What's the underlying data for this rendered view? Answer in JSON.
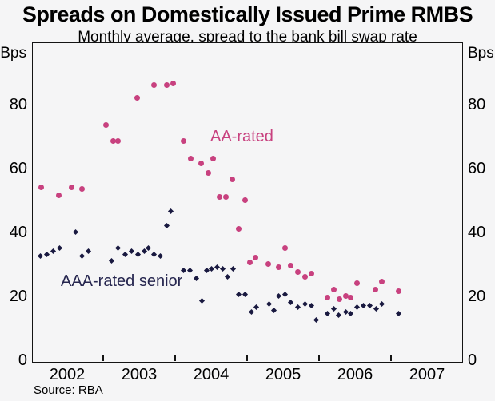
{
  "title": "Spreads on Domestically Issued Prime RMBS",
  "subtitle": "Monthly average, spread to the bank bill swap rate",
  "source": "Source: RBA",
  "series_labels": {
    "aa": "AA-rated",
    "aaa": "AAA-rated senior"
  },
  "colors": {
    "aa": "#c8417f",
    "aaa": "#191940",
    "aaa_label": "#26264f",
    "grid": "#b4b4b4",
    "frame": "#141414"
  },
  "chart_data": {
    "type": "scatter",
    "title": "Spreads on Domestically Issued Prime RMBS",
    "subtitle": "Monthly average, spread to the bank bill swap rate",
    "x_axis": {
      "start": 2002,
      "end": 2008,
      "boundary_tick_years": [
        2003,
        2004,
        2005,
        2006,
        2007
      ],
      "label_years": [
        "2002",
        "2003",
        "2004",
        "2005",
        "2006",
        "2007"
      ]
    },
    "y_axis": {
      "unit": "Bps",
      "min": 0,
      "max": 100,
      "gridlines": [
        20,
        40,
        60,
        80
      ],
      "tick_labels": [
        "0",
        "20",
        "40",
        "60",
        "80"
      ]
    },
    "grid": true,
    "legend_position": "inline-annotations",
    "series": [
      {
        "name": "AAA-rated senior",
        "marker": "diamond",
        "color": "#191940",
        "points": [
          [
            2002.13,
            33.5
          ],
          [
            2002.22,
            34
          ],
          [
            2002.31,
            35
          ],
          [
            2002.39,
            36
          ],
          [
            2002.62,
            41
          ],
          [
            2002.7,
            33.5
          ],
          [
            2002.79,
            35
          ],
          [
            2003.12,
            32
          ],
          [
            2003.21,
            36
          ],
          [
            2003.3,
            34
          ],
          [
            2003.39,
            35
          ],
          [
            2003.48,
            34
          ],
          [
            2003.57,
            35
          ],
          [
            2003.63,
            36
          ],
          [
            2003.71,
            34
          ],
          [
            2003.79,
            33.5
          ],
          [
            2003.88,
            43
          ],
          [
            2003.94,
            47.5
          ],
          [
            2004.12,
            29
          ],
          [
            2004.21,
            29
          ],
          [
            2004.29,
            26.5
          ],
          [
            2004.37,
            19.5
          ],
          [
            2004.44,
            29
          ],
          [
            2004.51,
            29.5
          ],
          [
            2004.58,
            30
          ],
          [
            2004.66,
            29.5
          ],
          [
            2004.73,
            27
          ],
          [
            2004.8,
            29.5
          ],
          [
            2004.88,
            21.5
          ],
          [
            2004.97,
            21.5
          ],
          [
            2005.06,
            16
          ],
          [
            2005.13,
            17.5
          ],
          [
            2005.3,
            18.5
          ],
          [
            2005.37,
            16.5
          ],
          [
            2005.44,
            21
          ],
          [
            2005.53,
            21.5
          ],
          [
            2005.61,
            19
          ],
          [
            2005.71,
            17.5
          ],
          [
            2005.8,
            18.5
          ],
          [
            2005.89,
            18
          ],
          [
            2005.96,
            13.5
          ],
          [
            2006.12,
            15.5
          ],
          [
            2006.2,
            17
          ],
          [
            2006.27,
            15
          ],
          [
            2006.37,
            16
          ],
          [
            2006.44,
            15.5
          ],
          [
            2006.53,
            17.5
          ],
          [
            2006.62,
            18
          ],
          [
            2006.71,
            18
          ],
          [
            2006.79,
            17
          ],
          [
            2006.87,
            18.5
          ],
          [
            2007.11,
            15.5
          ]
        ]
      },
      {
        "name": "AA-rated",
        "marker": "circle",
        "color": "#c8417f",
        "points": [
          [
            2002.14,
            55
          ],
          [
            2002.38,
            52.5
          ],
          [
            2002.56,
            55
          ],
          [
            2002.71,
            54.5
          ],
          [
            2003.04,
            74.5
          ],
          [
            2003.14,
            69.5
          ],
          [
            2003.21,
            69.5
          ],
          [
            2003.47,
            83
          ],
          [
            2003.71,
            87
          ],
          [
            2003.88,
            87
          ],
          [
            2003.97,
            87.5
          ],
          [
            2004.12,
            69.5
          ],
          [
            2004.22,
            64
          ],
          [
            2004.36,
            62.5
          ],
          [
            2004.46,
            59.5
          ],
          [
            2004.53,
            64
          ],
          [
            2004.62,
            52
          ],
          [
            2004.71,
            52
          ],
          [
            2004.79,
            57.5
          ],
          [
            2004.88,
            42
          ],
          [
            2004.97,
            51
          ],
          [
            2005.04,
            31.5
          ],
          [
            2005.12,
            33
          ],
          [
            2005.29,
            31
          ],
          [
            2005.44,
            30
          ],
          [
            2005.53,
            36
          ],
          [
            2005.61,
            30.5
          ],
          [
            2005.7,
            28.5
          ],
          [
            2005.8,
            27
          ],
          [
            2005.89,
            28
          ],
          [
            2006.12,
            20.5
          ],
          [
            2006.21,
            23
          ],
          [
            2006.28,
            20
          ],
          [
            2006.37,
            21
          ],
          [
            2006.44,
            20.5
          ],
          [
            2006.53,
            25
          ],
          [
            2006.78,
            23
          ],
          [
            2006.87,
            25.5
          ],
          [
            2007.11,
            22.5
          ]
        ]
      }
    ],
    "annotations": [
      {
        "text": "AA-rated",
        "series": "AA-rated"
      },
      {
        "text": "AAA-rated senior",
        "series": "AAA-rated senior"
      }
    ],
    "source": "Source: RBA"
  }
}
